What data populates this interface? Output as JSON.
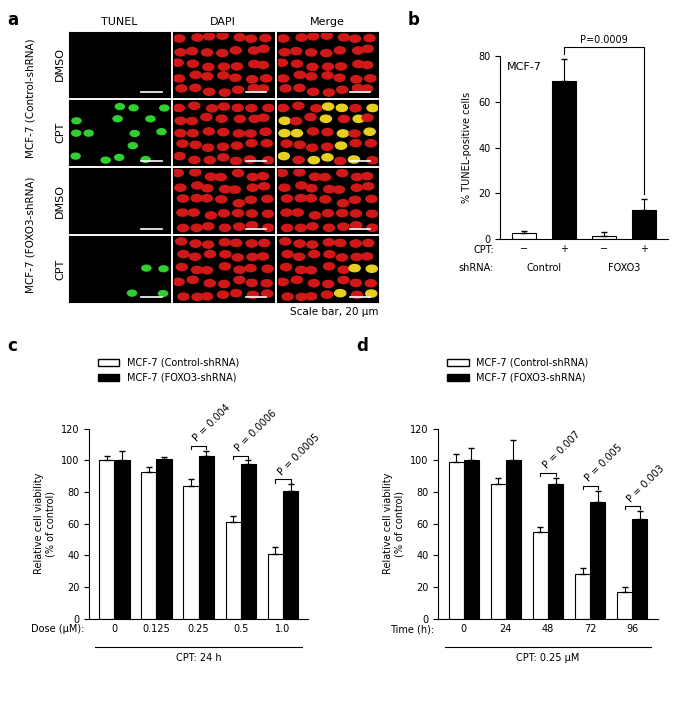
{
  "panel_a": {
    "panel": "a",
    "columns": [
      "TUNEL",
      "DAPI",
      "Merge"
    ],
    "groups": [
      {
        "label": "MCF-7 (Control-shRNA)",
        "rows": [
          "DMSO",
          "CPT"
        ]
      },
      {
        "label": "MCF-7 (FOXO3-shRNA)",
        "rows": [
          "DMSO",
          "CPT"
        ]
      }
    ],
    "caption": "Scale bar, 20 μm"
  },
  "chart_data": [
    {
      "panel": "b",
      "type": "bar",
      "subtitle": "MCF-7",
      "y_label": "% TUNEL-positive cells",
      "category_label": "CPT:",
      "categories": [
        "−",
        "+",
        "−",
        "+"
      ],
      "values": [
        2.5,
        69,
        1.5,
        12.5
      ],
      "errors": [
        1,
        10,
        1.5,
        5
      ],
      "colors": [
        "#ffffff",
        "#000000",
        "#ffffff",
        "#000000"
      ],
      "group_label": "shRNA:",
      "groups": [
        "Control",
        "FOXO3"
      ],
      "ylim": [
        0,
        80
      ],
      "yticks": [
        0,
        20,
        40,
        60,
        80
      ],
      "comparisons": [
        {
          "text": "P=0.0009",
          "bars": [
            1,
            3
          ]
        }
      ]
    },
    {
      "panel": "c",
      "type": "bar",
      "y_label": "Relative cell viability\n(% of control)",
      "category_label": "Dose (μM):",
      "categories": [
        "0",
        "0.125",
        "0.25",
        "0.5",
        "1.0"
      ],
      "x_title": "CPT: 24 h",
      "series": [
        {
          "name": "MCF-7 (Control-shRNA)",
          "color": "#ffffff",
          "values": [
            100,
            93,
            84,
            61,
            41
          ],
          "errors": [
            3,
            3,
            4,
            4,
            4
          ]
        },
        {
          "name": "MCF-7 (FOXO3-shRNA)",
          "color": "#000000",
          "values": [
            100,
            101,
            103,
            98,
            81
          ],
          "errors": [
            6,
            1.5,
            3,
            2,
            4
          ]
        }
      ],
      "ylim": [
        0,
        120
      ],
      "yticks": [
        0,
        20,
        40,
        60,
        80,
        100,
        120
      ],
      "legend": "upper left",
      "comparisons": [
        {
          "text": "P = 0.004",
          "category": "0.25"
        },
        {
          "text": "P = 0.0006",
          "category": "0.5"
        },
        {
          "text": "P = 0.0005",
          "category": "1.0"
        }
      ]
    },
    {
      "panel": "d",
      "type": "bar",
      "y_label": "Relative cell viability\n(% of control)",
      "category_label": "Time (h):",
      "categories": [
        "0",
        "24",
        "48",
        "72",
        "96"
      ],
      "x_title": "CPT: 0.25 μM",
      "series": [
        {
          "name": "MCF-7 (Control-shRNA)",
          "color": "#ffffff",
          "values": [
            99,
            85,
            55,
            28,
            17
          ],
          "errors": [
            5,
            4,
            3,
            4,
            3
          ]
        },
        {
          "name": "MCF-7 (FOXO3-shRNA)",
          "color": "#000000",
          "values": [
            100,
            100,
            85,
            74,
            63
          ],
          "errors": [
            8,
            13,
            4,
            7,
            5
          ]
        }
      ],
      "ylim": [
        0,
        120
      ],
      "yticks": [
        0,
        20,
        40,
        60,
        80,
        100,
        120
      ],
      "legend": "upper left",
      "comparisons": [
        {
          "text": "P = 0.007",
          "category": "48"
        },
        {
          "text": "P = 0.005",
          "category": "72"
        },
        {
          "text": "P = 0.003",
          "category": "96"
        }
      ]
    }
  ]
}
